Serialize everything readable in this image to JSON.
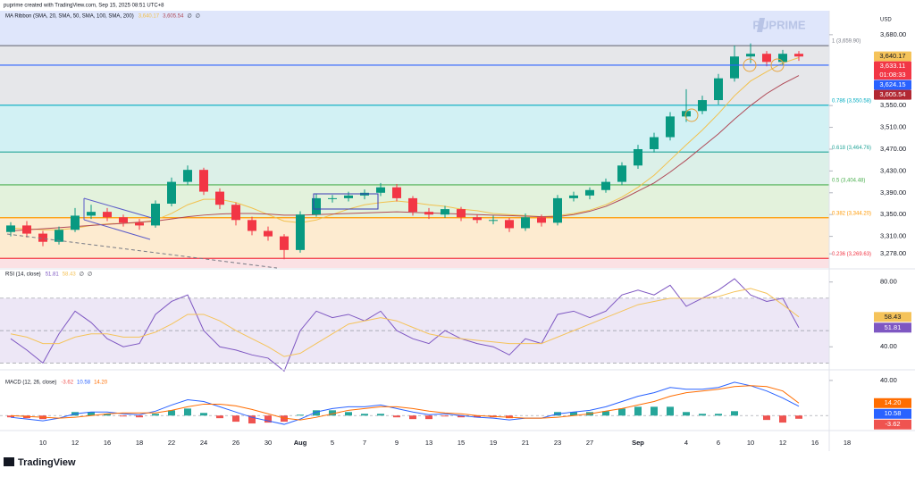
{
  "header": "puprime created with TradingView.com, Sep 15, 2025 08:51 UTC+8",
  "watermark": "PUPRIME",
  "currency": "USD",
  "footer": "TradingView",
  "chart_data": {
    "type": "candlestick",
    "legend": "MA Ribbon (SMA, 20, SMA, 50, SMA, 100, SMA, 200)",
    "na": "∅",
    "categories": [
      null,
      null,
      "10",
      null,
      "12",
      null,
      "16",
      null,
      "18",
      null,
      "22",
      null,
      "24",
      null,
      "26",
      null,
      "30",
      null,
      "Aug",
      null,
      "5",
      null,
      "7",
      null,
      "9",
      null,
      "13",
      null,
      "15",
      null,
      "19",
      null,
      "21",
      null,
      "23",
      null,
      "27",
      null,
      null,
      "Sep",
      null,
      null,
      "4",
      null,
      "6",
      null,
      "10",
      null,
      "12",
      null,
      "16",
      null,
      "18"
    ],
    "open": [
      3318,
      3330,
      3315,
      3300,
      3322,
      3348,
      3355,
      3345,
      3335,
      3330,
      3370,
      3410,
      3432,
      3392,
      3368,
      3340,
      3320,
      3310,
      3285,
      3350,
      3380,
      3380,
      3385,
      3390,
      3400,
      3380,
      3355,
      3350,
      3360,
      3345,
      3340,
      3340,
      3325,
      3345,
      3335,
      3380,
      3385,
      3395,
      3410,
      3440,
      3470,
      3492,
      3530,
      3540,
      3560,
      3600,
      3640,
      3645,
      3630,
      3645,
      null,
      null,
      null
    ],
    "high": [
      3336,
      3338,
      3320,
      3328,
      3362,
      3368,
      3362,
      3350,
      3342,
      3376,
      3418,
      3440,
      3436,
      3398,
      3372,
      3346,
      3328,
      3314,
      3356,
      3388,
      3386,
      3392,
      3396,
      3408,
      3406,
      3384,
      3362,
      3366,
      3364,
      3350,
      3348,
      3344,
      3352,
      3350,
      3386,
      3392,
      3400,
      3416,
      3446,
      3478,
      3500,
      3538,
      3580,
      3568,
      3608,
      3660,
      3664,
      3650,
      3652,
      3650,
      null,
      null,
      null
    ],
    "low": [
      3310,
      3308,
      3292,
      3295,
      3318,
      3342,
      3338,
      3328,
      3322,
      3326,
      3365,
      3404,
      3386,
      3360,
      3330,
      3312,
      3302,
      3268,
      3280,
      3346,
      3372,
      3374,
      3378,
      3384,
      3374,
      3348,
      3342,
      3344,
      3338,
      3334,
      3332,
      3318,
      3320,
      3328,
      3330,
      3374,
      3378,
      3390,
      3404,
      3434,
      3464,
      3486,
      3520,
      3534,
      3552,
      3594,
      3628,
      3622,
      3624,
      3632,
      null,
      null,
      null
    ],
    "close": [
      3330,
      3315,
      3300,
      3322,
      3348,
      3355,
      3345,
      3335,
      3330,
      3370,
      3410,
      3432,
      3392,
      3368,
      3340,
      3320,
      3310,
      3285,
      3350,
      3380,
      3380,
      3385,
      3390,
      3400,
      3380,
      3355,
      3350,
      3360,
      3345,
      3340,
      3340,
      3325,
      3345,
      3335,
      3380,
      3385,
      3395,
      3410,
      3440,
      3470,
      3492,
      3530,
      3540,
      3560,
      3600,
      3640,
      3645,
      3630,
      3645,
      3640,
      null,
      null,
      null
    ],
    "up_color": "#089981",
    "down_color": "#f23645",
    "series": [
      {
        "name": "SMA 20",
        "color": "#f2c14e",
        "values": [
          3325,
          3324,
          3322,
          3322,
          3325,
          3330,
          3333,
          3334,
          3335,
          3340,
          3352,
          3368,
          3378,
          3378,
          3372,
          3362,
          3350,
          3338,
          3335,
          3340,
          3350,
          3360,
          3368,
          3372,
          3375,
          3372,
          3368,
          3365,
          3360,
          3357,
          3352,
          3350,
          3348,
          3346,
          3348,
          3352,
          3358,
          3368,
          3382,
          3400,
          3422,
          3450,
          3478,
          3505,
          3535,
          3568,
          3595,
          3612,
          3628,
          3638,
          null,
          null,
          null
        ]
      },
      {
        "name": "SMA 50",
        "color": "#b04a57",
        "values": [
          3320,
          3322,
          3324,
          3326,
          3328,
          3330,
          3332,
          3334,
          3336,
          3338,
          3342,
          3346,
          3349,
          3351,
          3352,
          3352,
          3351,
          3349,
          3349,
          3350,
          3351,
          3352,
          3353,
          3354,
          3355,
          3354,
          3353,
          3352,
          3351,
          3350,
          3349,
          3348,
          3347,
          3346,
          3346,
          3350,
          3356,
          3365,
          3378,
          3393,
          3408,
          3428,
          3450,
          3474,
          3498,
          3525,
          3550,
          3572,
          3590,
          3605,
          null,
          null,
          null
        ]
      }
    ],
    "fib": [
      {
        "label": "1 (3,659.90)",
        "value": 3659.9,
        "color": "#787b86",
        "fill": "#e6e7ea"
      },
      {
        "label": "0.786 (3,550.58)",
        "value": 3550.58,
        "color": "#00acc1",
        "fill": "#d2f1f4"
      },
      {
        "label": "0.618 (3,464.76)",
        "value": 3464.76,
        "color": "#26a69a",
        "fill": "#dcf0e8"
      },
      {
        "label": "0.5 (3,404.48)",
        "value": 3404.48,
        "color": "#4caf50",
        "fill": "#e3f2dc"
      },
      {
        "label": "0.382 (3,344.20)",
        "value": 3344.2,
        "color": "#ff9800",
        "fill": "#fdebd0"
      },
      {
        "label": "0.236 (3,269.63)",
        "value": 3269.63,
        "color": "#f23645",
        "fill": "#fbe1e4"
      }
    ],
    "fib_fill_above": "#dfe6fb",
    "price_labels": [
      {
        "value": 3640.17,
        "label": "3,640.17",
        "color": "#f5c35a",
        "text_color": "#131722"
      },
      {
        "value": 3633.11,
        "label": "3,633.11",
        "sublabel": "01:08:33",
        "color": "#f23645",
        "text_color": "#ffffff"
      },
      {
        "value": 3624.15,
        "label": "3,624.15",
        "color": "#2962ff",
        "text_color": "#ffffff",
        "line": true
      },
      {
        "value": 3605.54,
        "label": "3,605.54",
        "color": "#b22833",
        "text_color": "#ffffff"
      }
    ],
    "ylim": [
      3252,
      3724
    ],
    "yticks": [
      {
        "value": 3680,
        "label": "3,680.00"
      },
      {
        "value": 3550,
        "label": "3,550.00"
      },
      {
        "value": 3510,
        "label": "3,510.00"
      },
      {
        "value": 3470,
        "label": "3,470.00"
      },
      {
        "value": 3430,
        "label": "3,430.00"
      },
      {
        "value": 3390,
        "label": "3,390.00"
      },
      {
        "value": 3350,
        "label": "3,350.00"
      },
      {
        "value": 3310,
        "label": "3,310.00"
      },
      {
        "value": 3278,
        "label": "3,278.00"
      }
    ],
    "rsi": {
      "type": "line",
      "legend": "RSI (14, close)",
      "series": [
        {
          "name": "RSI",
          "color": "#7e57c2",
          "values": [
            45,
            38,
            30,
            48,
            62,
            55,
            45,
            40,
            42,
            60,
            68,
            72,
            50,
            40,
            38,
            35,
            33,
            25,
            50,
            62,
            58,
            60,
            56,
            62,
            50,
            45,
            42,
            50,
            45,
            42,
            40,
            35,
            45,
            42,
            60,
            62,
            58,
            62,
            72,
            75,
            72,
            78,
            65,
            70,
            75,
            82,
            72,
            68,
            70,
            51.81,
            null,
            null,
            null
          ],
          "value_label": "51.81"
        },
        {
          "name": "RSI MA",
          "color": "#f5c35a",
          "values": [
            48,
            46,
            42,
            42,
            46,
            48,
            48,
            46,
            46,
            49,
            54,
            60,
            60,
            56,
            50,
            45,
            40,
            34,
            36,
            42,
            48,
            54,
            56,
            58,
            56,
            52,
            48,
            46,
            45,
            44,
            43,
            42,
            42,
            42,
            46,
            50,
            54,
            58,
            62,
            66,
            68,
            70,
            70,
            70,
            71,
            74,
            76,
            73,
            66,
            58.43,
            null,
            null,
            null
          ],
          "value_label": "58.43"
        }
      ],
      "upper": 70,
      "middle": 50,
      "lower": 30,
      "band_color": "#ede7f6",
      "ylim": [
        28,
        87
      ],
      "yticks": [
        {
          "value": 80,
          "label": "80.00"
        },
        {
          "value": 40,
          "label": "40.00"
        }
      ]
    },
    "macd": {
      "type": "macd",
      "legend": "MACD (12, 26, close)",
      "histogram": {
        "values": [
          -2,
          -3,
          -4,
          0,
          4,
          4,
          2,
          -1,
          -2,
          2,
          6,
          8,
          3,
          -3,
          -7,
          -9,
          -8,
          -7,
          1,
          6,
          6,
          4,
          2,
          2,
          -2,
          -4,
          -4,
          -1,
          -2,
          -2,
          -2,
          -3,
          0,
          0,
          4,
          4,
          4,
          5,
          8,
          10,
          10,
          10,
          4,
          2,
          2,
          5,
          0,
          -5,
          -8,
          -3.62,
          null,
          null,
          null
        ],
        "value_label": "-3.62",
        "up_color": "#26a69a",
        "down_color": "#ef5350"
      },
      "series": [
        {
          "name": "MACD",
          "color": "#2962ff",
          "values": [
            -2,
            -4,
            -6,
            -3,
            2,
            4,
            4,
            2,
            1,
            5,
            12,
            18,
            16,
            10,
            4,
            -2,
            -6,
            -10,
            -4,
            4,
            8,
            10,
            10,
            12,
            8,
            4,
            1,
            2,
            0,
            -2,
            -3,
            -5,
            -3,
            -3,
            2,
            4,
            6,
            10,
            16,
            22,
            26,
            32,
            30,
            30,
            32,
            38,
            34,
            28,
            20,
            10.58,
            null,
            null,
            null
          ],
          "value_label": "10.58"
        },
        {
          "name": "Signal",
          "color": "#ff6d00",
          "values": [
            0,
            -1,
            -2,
            -3,
            -2,
            0,
            2,
            3,
            3,
            3,
            6,
            10,
            13,
            13,
            11,
            7,
            2,
            -3,
            -5,
            -2,
            2,
            6,
            8,
            10,
            10,
            8,
            5,
            3,
            2,
            0,
            -1,
            -2,
            -3,
            -3,
            -2,
            0,
            2,
            5,
            8,
            12,
            16,
            22,
            26,
            28,
            30,
            33,
            34,
            33,
            28,
            14.2,
            null,
            null,
            null
          ],
          "value_label": "14.20"
        }
      ],
      "ylim": [
        -13,
        46
      ],
      "yticks": [
        {
          "value": 40,
          "label": "40.00"
        }
      ]
    }
  }
}
